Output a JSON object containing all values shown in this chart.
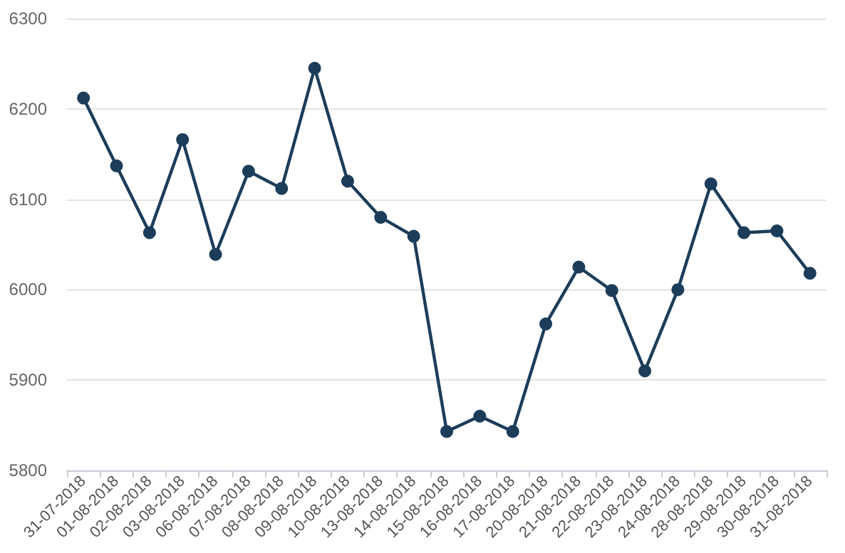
{
  "chart_data": {
    "type": "line",
    "categories": [
      "31-07-2018",
      "01-08-2018",
      "02-08-2018",
      "03-08-2018",
      "06-08-2018",
      "07-08-2018",
      "08-08-2018",
      "09-08-2018",
      "10-08-2018",
      "13-08-2018",
      "14-08-2018",
      "15-08-2018",
      "16-08-2018",
      "17-08-2018",
      "20-08-2018",
      "21-08-2018",
      "22-08-2018",
      "23-08-2018",
      "24-08-2018",
      "28-08-2018",
      "29-08-2018",
      "30-08-2018",
      "31-08-2018"
    ],
    "series": [
      {
        "color": "#1c3d5a",
        "values": [
          6212,
          6137,
          6063,
          6166,
          6039,
          6131,
          6112,
          6245,
          6120,
          6080,
          6059,
          5843,
          5860,
          5843,
          5962,
          6025,
          5999,
          5910,
          6000,
          6117,
          6063,
          6065,
          6018
        ]
      }
    ],
    "ylim": [
      5800,
      6300
    ],
    "yticks": [
      5800,
      5900,
      6000,
      6100,
      6200,
      6300
    ],
    "grid": "y",
    "marker": "circle",
    "line_style": "solid"
  }
}
